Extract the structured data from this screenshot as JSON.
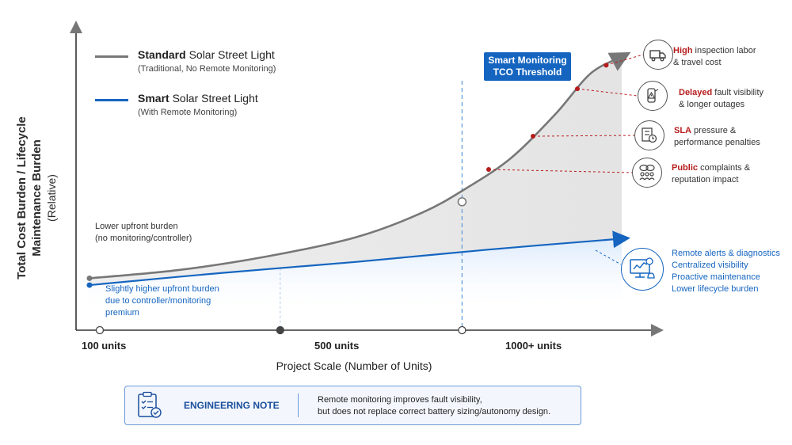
{
  "chart_data": {
    "type": "line",
    "title": "",
    "xlabel": "Project Scale (Number of Units)",
    "ylabel": "Total Cost Burden / Lifecycle Maintenance Burden",
    "ylabel_sub": "(Relative)",
    "x_ticks": [
      "100 units",
      "500 units",
      "1000+ units"
    ],
    "x_tick_positions": [
      0,
      0.43,
      0.84
    ],
    "x_range": [
      0,
      1.23
    ],
    "y_range": [
      0,
      1
    ],
    "grid": false,
    "legend_position": "top-left",
    "series": [
      {
        "key": "standard",
        "name_bold": "Standard",
        "name_rest": " Solar Street Light",
        "description": "(Traditional, No Remote Monitoring)",
        "color": "#777777",
        "x": [
          0,
          0.2,
          0.4,
          0.6,
          0.75,
          0.85,
          0.95,
          1.05,
          1.13,
          1.2
        ],
        "y": [
          0.19,
          0.22,
          0.27,
          0.34,
          0.43,
          0.52,
          0.63,
          0.79,
          0.94,
          1.0
        ]
      },
      {
        "key": "smart",
        "name_bold": "Smart",
        "name_rest": " Solar Street Light",
        "description": "(With Remote Monitoring)",
        "color": "#1565c0",
        "x": [
          0,
          0.3,
          0.6,
          0.9,
          1.2
        ],
        "y": [
          0.165,
          0.21,
          0.25,
          0.295,
          0.335
        ]
      }
    ],
    "highlight_point": {
      "x": 0.84,
      "y": 0.47
    },
    "threshold": {
      "x": 0.84,
      "label_line1": "Smart Monitoring",
      "label_line2": "TCO Threshold"
    },
    "guide_x": 0.43,
    "annotations": {
      "standard_start_line1": "Lower upfront burden",
      "standard_start_line2": "(no monitoring/controller)",
      "smart_start_line1": "Slightly higher upfront burden",
      "smart_start_line2": "due to controller/monitoring",
      "smart_start_line3": "premium"
    },
    "impacts": [
      {
        "icon": "truck-icon",
        "keyword": "High",
        "rest": " inspection labor",
        "line2": "& travel cost",
        "curve_x": 1.165
      },
      {
        "icon": "alert-lamp-icon",
        "keyword": "Delayed",
        "rest": " fault visibility",
        "line2": "& longer outages",
        "curve_x": 1.1
      },
      {
        "icon": "checklist-clock-icon",
        "keyword": "SLA",
        "rest": " pressure &",
        "line2": "performance penalties",
        "curve_x": 1.0
      },
      {
        "icon": "people-chat-icon",
        "keyword": "Public",
        "rest": " complaints &",
        "line2": "reputation impact",
        "curve_x": 0.9
      }
    ],
    "benefits": {
      "icon": "monitor-dashboard-icon",
      "items": [
        "Remote alerts & diagnostics",
        "Centralized visibility",
        "Proactive maintenance",
        "Lower lifecycle burden"
      ]
    },
    "colors": {
      "standard": "#777777",
      "smart": "#1565c0",
      "impact": "#b71c1c",
      "area": "#e6e6e6"
    }
  },
  "note": {
    "icon": "clipboard-check-icon",
    "title": "ENGINEERING NOTE",
    "line1": "Remote monitoring improves fault visibility,",
    "line2": "but does not replace correct battery sizing/autonomy design."
  }
}
